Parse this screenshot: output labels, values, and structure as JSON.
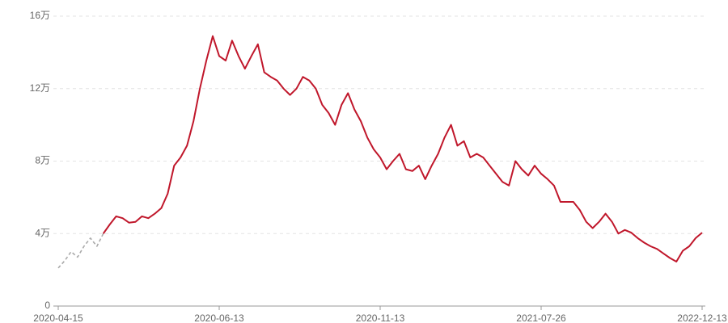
{
  "chart_data": {
    "type": "line",
    "categories": [
      "2020-04-15",
      null,
      null,
      null,
      null,
      null,
      null,
      null,
      null,
      null,
      null,
      null,
      null,
      null,
      null,
      null,
      null,
      null,
      null,
      null,
      null,
      null,
      null,
      null,
      null,
      "2020-06-13",
      null,
      null,
      null,
      null,
      null,
      null,
      null,
      null,
      null,
      null,
      null,
      null,
      null,
      null,
      null,
      null,
      null,
      null,
      null,
      null,
      null,
      null,
      null,
      null,
      "2020-11-13",
      null,
      null,
      null,
      null,
      null,
      null,
      null,
      null,
      null,
      null,
      null,
      null,
      null,
      null,
      null,
      null,
      null,
      null,
      null,
      null,
      null,
      null,
      null,
      null,
      "2021-07-26",
      null,
      null,
      null,
      null,
      null,
      null,
      null,
      null,
      null,
      null,
      null,
      null,
      null,
      null,
      null,
      null,
      null,
      null,
      null,
      null,
      null,
      null,
      null,
      null,
      "2022-12-13"
    ],
    "series": [
      {
        "color": "#aaaaaa",
        "dashed": true,
        "values": [
          2.1,
          2.5,
          3.0,
          2.7,
          3.3,
          3.75,
          3.3,
          4.0,
          null,
          null,
          null,
          null,
          null,
          null,
          null,
          null,
          null,
          null,
          null,
          null,
          null,
          null,
          null,
          null,
          null,
          null,
          null,
          null,
          null,
          null,
          null,
          null,
          null,
          null,
          null,
          null,
          null,
          null,
          null,
          null,
          null,
          null,
          null,
          null,
          null,
          null,
          null,
          null,
          null,
          null,
          null,
          null,
          null,
          null,
          null,
          null,
          null,
          null,
          null,
          null,
          null,
          null,
          null,
          null,
          null,
          null,
          null,
          null,
          null,
          null,
          null,
          null,
          null,
          null,
          null,
          null,
          null,
          null,
          null,
          null,
          null,
          null,
          null,
          null,
          null,
          null,
          null,
          null,
          null,
          null,
          null,
          null,
          null,
          null,
          null,
          null,
          null,
          null,
          null,
          null,
          null
        ]
      },
      {
        "color": "#c0172b",
        "dashed": false,
        "values": [
          null,
          null,
          null,
          null,
          null,
          null,
          null,
          4.0,
          4.5,
          4.95,
          4.85,
          4.6,
          4.65,
          4.95,
          4.85,
          5.1,
          5.4,
          6.2,
          7.75,
          8.2,
          8.85,
          10.2,
          12.0,
          13.55,
          14.9,
          13.8,
          13.55,
          14.65,
          13.8,
          13.1,
          13.8,
          14.45,
          12.9,
          12.65,
          12.45,
          12.0,
          11.65,
          12.0,
          12.65,
          12.45,
          12.0,
          11.1,
          10.65,
          10.0,
          11.1,
          11.75,
          10.85,
          10.2,
          9.3,
          8.65,
          8.2,
          7.55,
          8.0,
          8.4,
          7.55,
          7.45,
          7.75,
          7.0,
          7.75,
          8.4,
          9.3,
          10.0,
          8.85,
          9.1,
          8.2,
          8.4,
          8.2,
          7.75,
          7.3,
          6.85,
          6.65,
          8.0,
          7.55,
          7.2,
          7.75,
          7.3,
          7.0,
          6.65,
          5.75,
          5.75,
          5.75,
          5.3,
          4.65,
          4.3,
          4.65,
          5.1,
          4.65,
          4.0,
          4.2,
          4.05,
          3.75,
          3.5,
          3.3,
          3.15,
          2.9,
          2.65,
          2.45,
          3.05,
          3.3,
          3.75,
          4.05
        ]
      }
    ],
    "ylim": [
      0,
      16
    ],
    "yticks": [
      0,
      {
        "value": 4,
        "label": "4万"
      },
      {
        "value": 8,
        "label": "8万"
      },
      {
        "value": 12,
        "label": "12万"
      },
      {
        "value": 16,
        "label": "16万"
      }
    ],
    "grid": true
  }
}
